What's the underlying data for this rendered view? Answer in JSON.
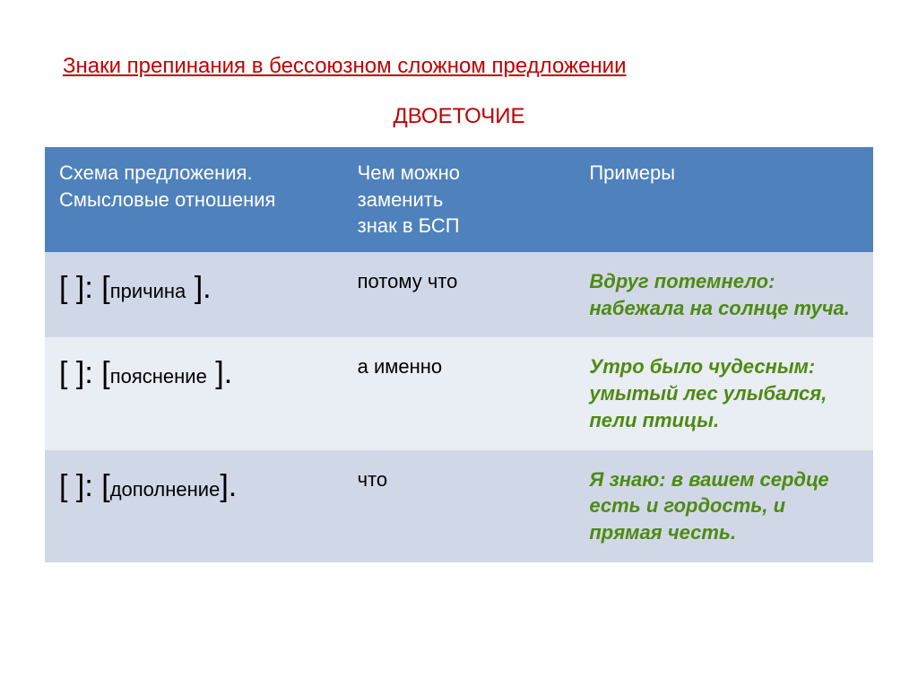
{
  "title": "Знаки препинания в бессоюзном сложном предложении",
  "title_color": "#c00000",
  "subtitle": "ДВОЕТОЧИЕ",
  "subtitle_color": "#c00000",
  "header": {
    "bg": "#4f81bd",
    "col1_line1": "Схема предложения.",
    "col1_line2": "Смысловые отношения",
    "col2_line1": "Чем можно",
    "col2_line2": "заменить",
    "col2_line3": "знак в БСП",
    "col3": "Примеры"
  },
  "rows": [
    {
      "bg": "#d0d8e8",
      "schema_prefix": "[ ]: [",
      "schema_label": "причина",
      "schema_suffix": " ].",
      "replace": "потому что",
      "example": "Вдруг потемнело: набежала на солнце туча.",
      "example_color": "#4f8a10"
    },
    {
      "bg": "#e9edf4",
      "schema_prefix": "[ ]: [",
      "schema_label": "пояснение",
      "schema_suffix": " ].",
      "replace": "а именно",
      "example": "Утро было чудесным: умытый лес улыбался, пели птицы.",
      "example_color": "#4f8a10"
    },
    {
      "bg": "#d0d8e8",
      "schema_prefix": "[ ]: [",
      "schema_label": "дополнение",
      "schema_suffix": "].",
      "replace": "что",
      "example": "Я знаю: в вашем сердце есть и гордость, и прямая честь.",
      "example_color": "#4f8a10"
    }
  ]
}
